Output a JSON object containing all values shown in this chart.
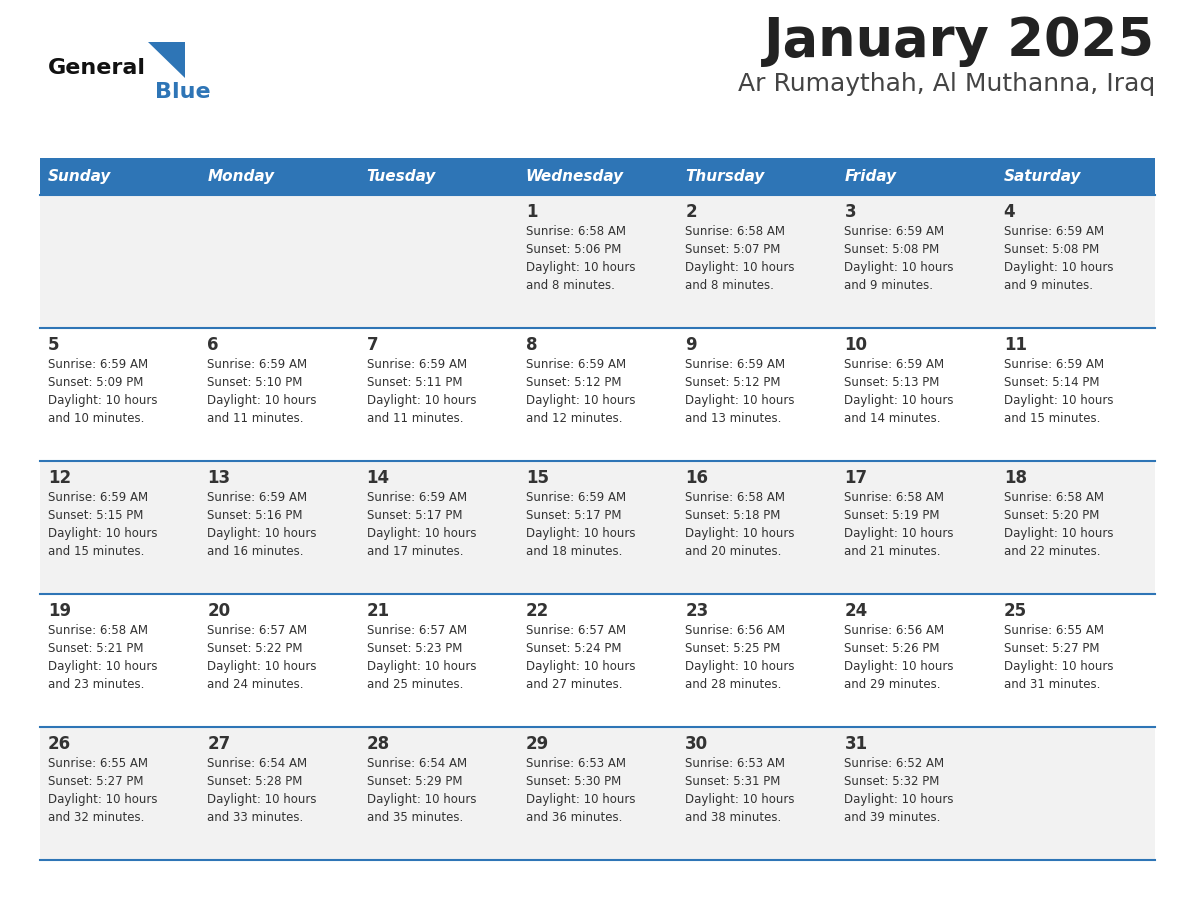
{
  "title": "January 2025",
  "subtitle": "Ar Rumaythah, Al Muthanna, Iraq",
  "days_of_week": [
    "Sunday",
    "Monday",
    "Tuesday",
    "Wednesday",
    "Thursday",
    "Friday",
    "Saturday"
  ],
  "header_bg": "#2E75B6",
  "header_text": "#FFFFFF",
  "row_bg_odd": "#F2F2F2",
  "row_bg_even": "#FFFFFF",
  "cell_text": "#333333",
  "separator_color": "#2E75B6",
  "title_color": "#222222",
  "subtitle_color": "#444444",
  "logo_general_color": "#111111",
  "logo_blue_color": "#2E75B6",
  "calendar_data": [
    [
      {
        "day": null,
        "info": null
      },
      {
        "day": null,
        "info": null
      },
      {
        "day": null,
        "info": null
      },
      {
        "day": 1,
        "info": "Sunrise: 6:58 AM\nSunset: 5:06 PM\nDaylight: 10 hours\nand 8 minutes."
      },
      {
        "day": 2,
        "info": "Sunrise: 6:58 AM\nSunset: 5:07 PM\nDaylight: 10 hours\nand 8 minutes."
      },
      {
        "day": 3,
        "info": "Sunrise: 6:59 AM\nSunset: 5:08 PM\nDaylight: 10 hours\nand 9 minutes."
      },
      {
        "day": 4,
        "info": "Sunrise: 6:59 AM\nSunset: 5:08 PM\nDaylight: 10 hours\nand 9 minutes."
      }
    ],
    [
      {
        "day": 5,
        "info": "Sunrise: 6:59 AM\nSunset: 5:09 PM\nDaylight: 10 hours\nand 10 minutes."
      },
      {
        "day": 6,
        "info": "Sunrise: 6:59 AM\nSunset: 5:10 PM\nDaylight: 10 hours\nand 11 minutes."
      },
      {
        "day": 7,
        "info": "Sunrise: 6:59 AM\nSunset: 5:11 PM\nDaylight: 10 hours\nand 11 minutes."
      },
      {
        "day": 8,
        "info": "Sunrise: 6:59 AM\nSunset: 5:12 PM\nDaylight: 10 hours\nand 12 minutes."
      },
      {
        "day": 9,
        "info": "Sunrise: 6:59 AM\nSunset: 5:12 PM\nDaylight: 10 hours\nand 13 minutes."
      },
      {
        "day": 10,
        "info": "Sunrise: 6:59 AM\nSunset: 5:13 PM\nDaylight: 10 hours\nand 14 minutes."
      },
      {
        "day": 11,
        "info": "Sunrise: 6:59 AM\nSunset: 5:14 PM\nDaylight: 10 hours\nand 15 minutes."
      }
    ],
    [
      {
        "day": 12,
        "info": "Sunrise: 6:59 AM\nSunset: 5:15 PM\nDaylight: 10 hours\nand 15 minutes."
      },
      {
        "day": 13,
        "info": "Sunrise: 6:59 AM\nSunset: 5:16 PM\nDaylight: 10 hours\nand 16 minutes."
      },
      {
        "day": 14,
        "info": "Sunrise: 6:59 AM\nSunset: 5:17 PM\nDaylight: 10 hours\nand 17 minutes."
      },
      {
        "day": 15,
        "info": "Sunrise: 6:59 AM\nSunset: 5:17 PM\nDaylight: 10 hours\nand 18 minutes."
      },
      {
        "day": 16,
        "info": "Sunrise: 6:58 AM\nSunset: 5:18 PM\nDaylight: 10 hours\nand 20 minutes."
      },
      {
        "day": 17,
        "info": "Sunrise: 6:58 AM\nSunset: 5:19 PM\nDaylight: 10 hours\nand 21 minutes."
      },
      {
        "day": 18,
        "info": "Sunrise: 6:58 AM\nSunset: 5:20 PM\nDaylight: 10 hours\nand 22 minutes."
      }
    ],
    [
      {
        "day": 19,
        "info": "Sunrise: 6:58 AM\nSunset: 5:21 PM\nDaylight: 10 hours\nand 23 minutes."
      },
      {
        "day": 20,
        "info": "Sunrise: 6:57 AM\nSunset: 5:22 PM\nDaylight: 10 hours\nand 24 minutes."
      },
      {
        "day": 21,
        "info": "Sunrise: 6:57 AM\nSunset: 5:23 PM\nDaylight: 10 hours\nand 25 minutes."
      },
      {
        "day": 22,
        "info": "Sunrise: 6:57 AM\nSunset: 5:24 PM\nDaylight: 10 hours\nand 27 minutes."
      },
      {
        "day": 23,
        "info": "Sunrise: 6:56 AM\nSunset: 5:25 PM\nDaylight: 10 hours\nand 28 minutes."
      },
      {
        "day": 24,
        "info": "Sunrise: 6:56 AM\nSunset: 5:26 PM\nDaylight: 10 hours\nand 29 minutes."
      },
      {
        "day": 25,
        "info": "Sunrise: 6:55 AM\nSunset: 5:27 PM\nDaylight: 10 hours\nand 31 minutes."
      }
    ],
    [
      {
        "day": 26,
        "info": "Sunrise: 6:55 AM\nSunset: 5:27 PM\nDaylight: 10 hours\nand 32 minutes."
      },
      {
        "day": 27,
        "info": "Sunrise: 6:54 AM\nSunset: 5:28 PM\nDaylight: 10 hours\nand 33 minutes."
      },
      {
        "day": 28,
        "info": "Sunrise: 6:54 AM\nSunset: 5:29 PM\nDaylight: 10 hours\nand 35 minutes."
      },
      {
        "day": 29,
        "info": "Sunrise: 6:53 AM\nSunset: 5:30 PM\nDaylight: 10 hours\nand 36 minutes."
      },
      {
        "day": 30,
        "info": "Sunrise: 6:53 AM\nSunset: 5:31 PM\nDaylight: 10 hours\nand 38 minutes."
      },
      {
        "day": 31,
        "info": "Sunrise: 6:52 AM\nSunset: 5:32 PM\nDaylight: 10 hours\nand 39 minutes."
      },
      {
        "day": null,
        "info": null
      }
    ]
  ]
}
